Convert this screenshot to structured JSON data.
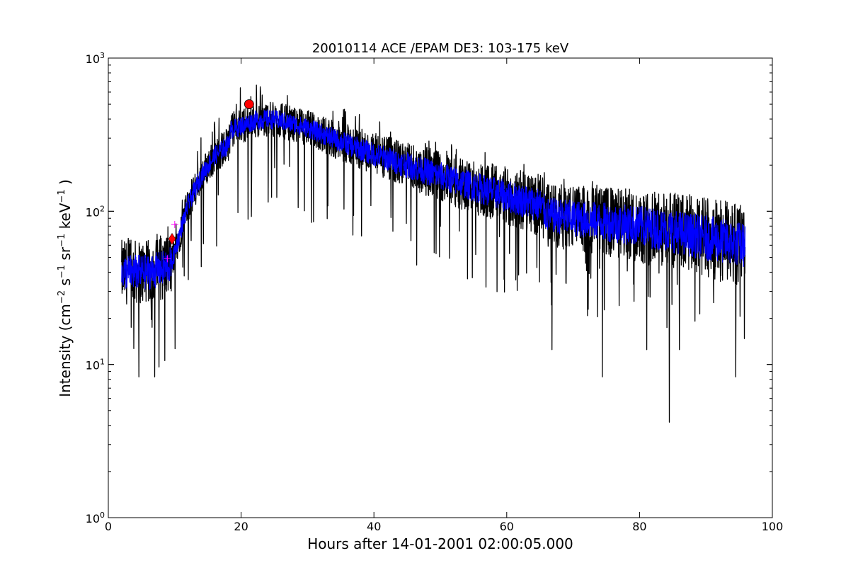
{
  "chart_data": {
    "type": "line",
    "title": "20010114 ACE /EPAM DE3: 103-175 keV",
    "xlabel": "Hours after 14-01-2001 02:00:05.000",
    "ylabel": {
      "prefix": "Intensity (cm",
      "sup1": "−2",
      "mid1": " s",
      "sup2": "−1",
      "mid2": " sr",
      "sup3": "−1",
      "mid3": " keV",
      "sup4": "−1",
      "suffix": " )"
    },
    "xlim": [
      0,
      100
    ],
    "ylim": [
      1,
      1000
    ],
    "yscale": "log",
    "x_ticks": [
      {
        "value": 0,
        "label": "0"
      },
      {
        "value": 20,
        "label": "20"
      },
      {
        "value": 40,
        "label": "40"
      },
      {
        "value": 60,
        "label": "60"
      },
      {
        "value": 80,
        "label": "80"
      },
      {
        "value": 100,
        "label": "100"
      }
    ],
    "y_ticks": [
      {
        "value": 1,
        "base": "10",
        "exp": "0"
      },
      {
        "value": 10,
        "base": "10",
        "exp": "1"
      },
      {
        "value": 100,
        "base": "10",
        "exp": "2"
      },
      {
        "value": 1000,
        "base": "10",
        "exp": "3"
      }
    ],
    "series": [
      {
        "color": "#000000",
        "role": "raw intensity",
        "x_range": [
          2.0,
          95.9
        ],
        "profile_x": [
          2,
          4,
          6,
          8,
          9.5,
          10.5,
          12,
          14,
          16,
          18,
          18.5,
          20,
          22,
          24,
          26,
          30,
          35,
          40,
          45,
          50,
          55,
          60,
          65,
          66,
          70,
          75,
          80,
          85,
          90,
          95.9
        ],
        "profile_y": [
          40,
          40,
          40,
          42,
          45,
          65,
          110,
          170,
          230,
          270,
          340,
          360,
          390,
          400,
          390,
          350,
          285,
          235,
          200,
          170,
          145,
          125,
          110,
          95,
          90,
          85,
          80,
          74,
          67,
          60
        ],
        "dips": [
          {
            "x": 4.6,
            "y": 8.3
          },
          {
            "x": 7.0,
            "y": 8.3
          },
          {
            "x": 66.8,
            "y": 12.5
          },
          {
            "x": 74.4,
            "y": 8.3
          },
          {
            "x": 81.1,
            "y": 12.5
          },
          {
            "x": 84.5,
            "y": 4.2
          },
          {
            "x": 86.0,
            "y": 12.5
          },
          {
            "x": 94.5,
            "y": 8.3
          }
        ]
      },
      {
        "color": "#0000ff",
        "role": "smoothed intensity",
        "x_range": [
          2.0,
          95.9
        ],
        "profile_x": [
          2,
          4,
          6,
          8,
          9.5,
          10.5,
          12,
          14,
          16,
          18,
          18.5,
          20,
          22,
          24,
          26,
          30,
          35,
          40,
          45,
          50,
          55,
          60,
          65,
          66,
          70,
          75,
          80,
          85,
          90,
          95.9
        ],
        "profile_y": [
          40,
          40,
          40,
          42,
          45,
          65,
          110,
          170,
          230,
          270,
          340,
          360,
          390,
          400,
          390,
          350,
          285,
          235,
          200,
          170,
          145,
          125,
          110,
          95,
          90,
          85,
          80,
          74,
          67,
          60
        ]
      }
    ],
    "markers": [
      {
        "shape": "circle",
        "color": "#ff0000",
        "x": 21.2,
        "y": 500
      },
      {
        "shape": "diamond",
        "color": "#ff0000",
        "x": 9.6,
        "y": 66
      },
      {
        "shape": "plus",
        "color": "#ff00ff",
        "x": 8.9,
        "y": 49
      },
      {
        "shape": "plus",
        "color": "#ff00ff",
        "x": 10.0,
        "y": 82
      }
    ]
  }
}
